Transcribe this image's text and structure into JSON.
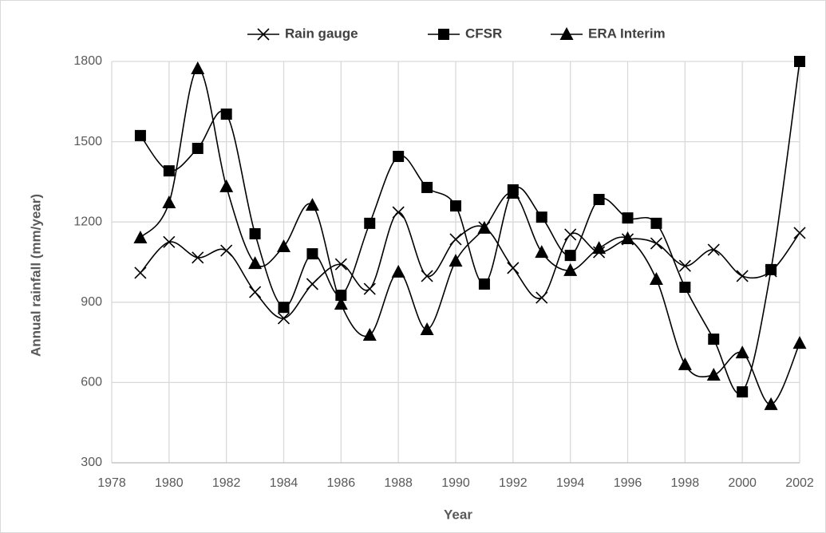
{
  "chart_data": {
    "type": "line",
    "smooth": true,
    "x_label": "Year",
    "y_label": "Annual rainfall  (mm/year)",
    "x": [
      1979,
      1980,
      1981,
      1982,
      1983,
      1984,
      1985,
      1986,
      1987,
      1988,
      1989,
      1990,
      1991,
      1992,
      1993,
      1994,
      1995,
      1996,
      1997,
      1998,
      1999,
      2000,
      2001,
      2002
    ],
    "series": [
      {
        "name": "Rain gauge",
        "color": "#000000",
        "marker": "x",
        "values": [
          1010,
          1125,
          1067,
          1093,
          938,
          840,
          968,
          1042,
          950,
          1236,
          998,
          1135,
          1180,
          1028,
          917,
          1153,
          1087,
          1135,
          1120,
          1036,
          1096,
          998,
          1016,
          1159
        ]
      },
      {
        "name": "CFSR",
        "color": "#000000",
        "marker": "square",
        "values": [
          1523,
          1391,
          1475,
          1603,
          1156,
          881,
          1081,
          926,
          1195,
          1445,
          1329,
          1260,
          968,
          1320,
          1218,
          1075,
          1284,
          1215,
          1195,
          956,
          762,
          565,
          1022,
          1800
        ]
      },
      {
        "name": "ERA Interim",
        "color": "#000000",
        "marker": "triangle",
        "values": [
          1141,
          1272,
          1773,
          1332,
          1045,
          1108,
          1263,
          893,
          777,
          1013,
          798,
          1054,
          1177,
          1308,
          1087,
          1019,
          1102,
          1138,
          986,
          667,
          628,
          711,
          518,
          747
        ]
      }
    ],
    "xlim": [
      1978,
      2002
    ],
    "xticks": [
      1978,
      1980,
      1982,
      1984,
      1986,
      1988,
      1990,
      1992,
      1994,
      1996,
      1998,
      2000,
      2002
    ],
    "ylim": [
      300,
      1800
    ],
    "yticks": [
      300,
      600,
      900,
      1200,
      1500,
      1800
    ],
    "grid": true,
    "legend": "top"
  }
}
